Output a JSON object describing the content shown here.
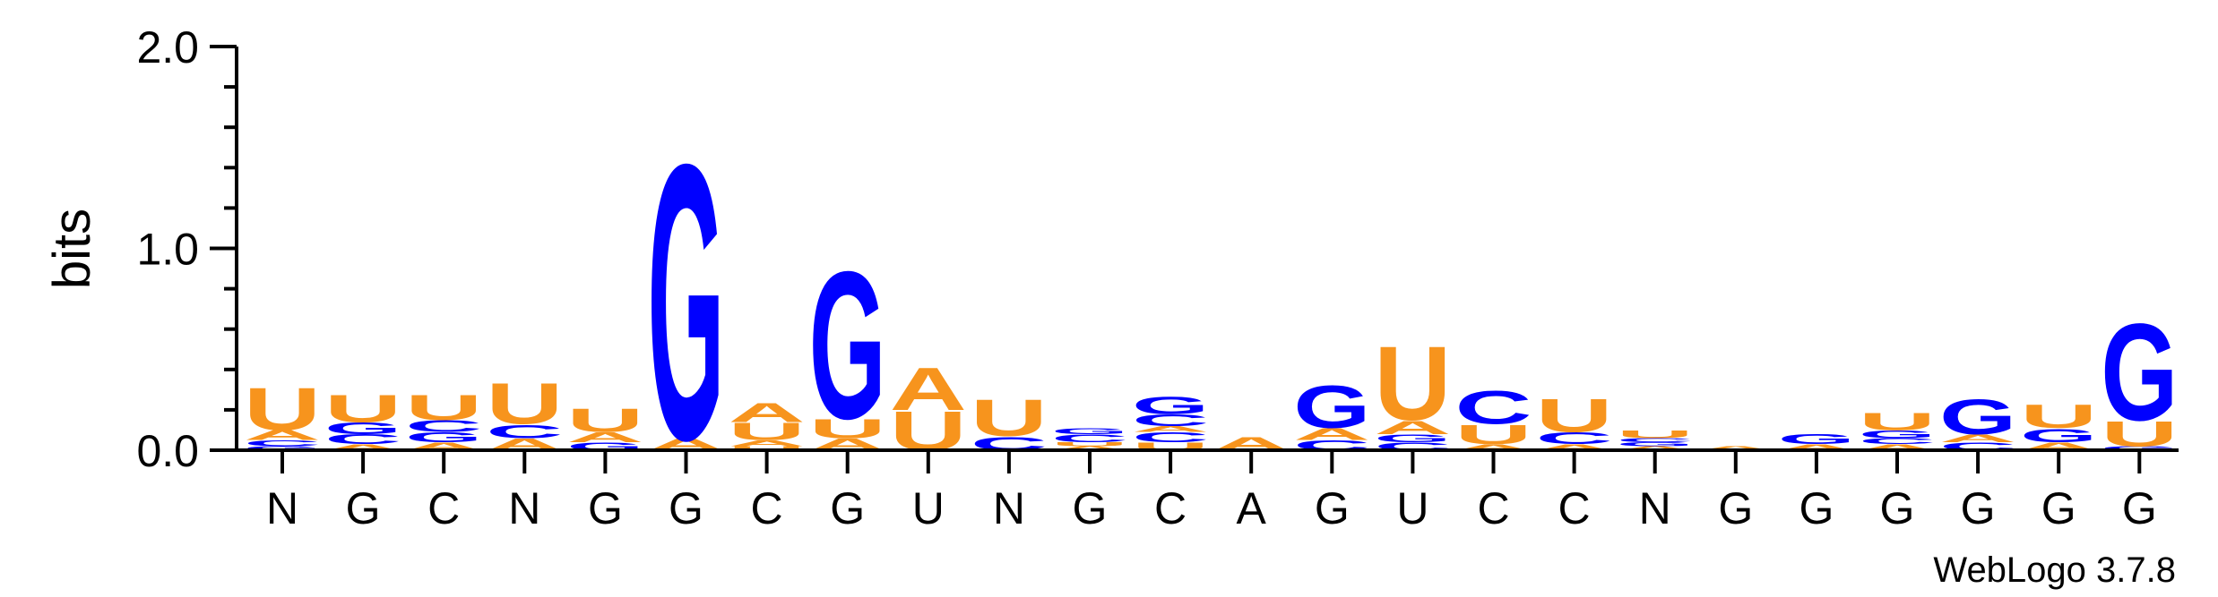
{
  "chart_data": {
    "type": "sequence-logo",
    "ylabel": "bits",
    "ylim": [
      0,
      2.0
    ],
    "y_ticks": [
      "0.0",
      "1.0",
      "2.0"
    ],
    "y_minor_step": 0.2,
    "colors": {
      "A": "#f7941d",
      "U": "#f7941d",
      "G": "#0000ff",
      "C": "#0000ff"
    },
    "x_labels": [
      "N",
      "G",
      "C",
      "N",
      "G",
      "G",
      "C",
      "G",
      "U",
      "N",
      "G",
      "C",
      "A",
      "G",
      "U",
      "C",
      "C",
      "N",
      "G",
      "G",
      "G",
      "G",
      "G",
      "G"
    ],
    "positions": [
      [
        [
          "G",
          0.02
        ],
        [
          "C",
          0.03
        ],
        [
          "A",
          0.05
        ],
        [
          "U",
          0.22
        ]
      ],
      [
        [
          "A",
          0.03
        ],
        [
          "C",
          0.05
        ],
        [
          "G",
          0.06
        ],
        [
          "U",
          0.14
        ]
      ],
      [
        [
          "A",
          0.04
        ],
        [
          "G",
          0.05
        ],
        [
          "C",
          0.06
        ],
        [
          "U",
          0.13
        ]
      ],
      [
        [
          "A",
          0.06
        ],
        [
          "C",
          0.07
        ],
        [
          "U",
          0.21
        ]
      ],
      [
        [
          "G",
          0.04
        ],
        [
          "A",
          0.05
        ],
        [
          "U",
          0.12
        ]
      ],
      [
        [
          "A",
          0.06
        ],
        [
          "G",
          1.42
        ]
      ],
      [
        [
          "U",
          0.02
        ],
        [
          "A",
          0.03
        ],
        [
          "U",
          0.09
        ],
        [
          "A",
          0.1
        ]
      ],
      [
        [
          "A",
          0.06
        ],
        [
          "U",
          0.1
        ],
        [
          "G",
          0.76
        ]
      ],
      [
        [
          "U",
          0.2
        ],
        [
          "A",
          0.22
        ]
      ],
      [
        [
          "C",
          0.07
        ],
        [
          "U",
          0.19
        ]
      ],
      [
        [
          "A",
          0.02
        ],
        [
          "U",
          0.02
        ],
        [
          "C",
          0.04
        ],
        [
          "G",
          0.03
        ]
      ],
      [
        [
          "U",
          0.04
        ],
        [
          "C",
          0.05
        ],
        [
          "A",
          0.03
        ],
        [
          "C",
          0.06
        ],
        [
          "G",
          0.09
        ]
      ],
      [
        [
          "A",
          0.07
        ]
      ],
      [
        [
          "C",
          0.05
        ],
        [
          "A",
          0.06
        ],
        [
          "G",
          0.22
        ]
      ],
      [
        [
          "C",
          0.04
        ],
        [
          "G",
          0.04
        ],
        [
          "A",
          0.07
        ],
        [
          "U",
          0.38
        ]
      ],
      [
        [
          "A",
          0.03
        ],
        [
          "U",
          0.1
        ],
        [
          "C",
          0.17
        ]
      ],
      [
        [
          "A",
          0.03
        ],
        [
          "C",
          0.06
        ],
        [
          "U",
          0.17
        ]
      ],
      [
        [
          "A",
          0.02
        ],
        [
          "G",
          0.02
        ],
        [
          "C",
          0.02
        ],
        [
          "U",
          0.04
        ]
      ],
      [
        [
          "A",
          0.02
        ]
      ],
      [
        [
          "A",
          0.03
        ],
        [
          "G",
          0.05
        ]
      ],
      [
        [
          "A",
          0.03
        ],
        [
          "C",
          0.03
        ],
        [
          "G",
          0.04
        ],
        [
          "U",
          0.09
        ]
      ],
      [
        [
          "C",
          0.04
        ],
        [
          "A",
          0.04
        ],
        [
          "G",
          0.18
        ]
      ],
      [
        [
          "A",
          0.04
        ],
        [
          "G",
          0.07
        ],
        [
          "U",
          0.12
        ]
      ],
      [
        [
          "G",
          0.02
        ],
        [
          "U",
          0.13
        ],
        [
          "G",
          0.5
        ]
      ]
    ]
  },
  "credit": "WebLogo 3.7.8"
}
